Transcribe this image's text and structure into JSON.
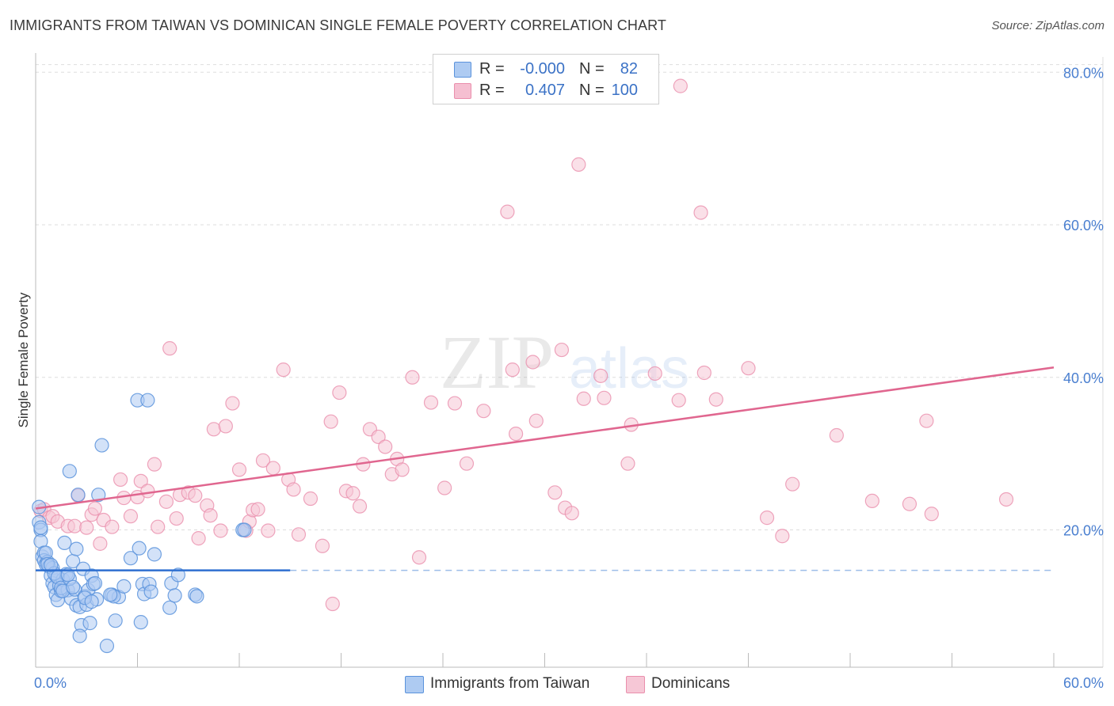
{
  "title": "IMMIGRANTS FROM TAIWAN VS DOMINICAN SINGLE FEMALE POVERTY CORRELATION CHART",
  "source": "Source: ZipAtlas.com",
  "watermark": {
    "zip": "ZIP",
    "atlas": "atlas"
  },
  "legend": {
    "r_label": "R =",
    "n_label": "N =",
    "rows": [
      {
        "r": "-0.000",
        "n": "82",
        "swatch": "#aecbf2"
      },
      {
        "r": "0.407",
        "n": "100",
        "swatch": "#f5bfd1"
      }
    ]
  },
  "bottom_legend": [
    "Immigrants from Taiwan",
    "Dominicans"
  ],
  "colors": {
    "blue_fill": "#aecbf2",
    "blue_stroke": "#5b93dc",
    "blue_line": "#2e6fd0",
    "pink_fill": "#f6c7d6",
    "pink_stroke": "#ea8fad",
    "pink_line": "#e0668f",
    "axis_label": "#4a7fd0",
    "grid": "#dddddd"
  },
  "chart_data": {
    "type": "scatter",
    "title": "IMMIGRANTS FROM TAIWAN VS DOMINICAN SINGLE FEMALE POVERTY CORRELATION CHART",
    "xlabel": "",
    "ylabel": "Single Female Poverty",
    "xlim": [
      0,
      60
    ],
    "ylim": [
      2,
      82
    ],
    "x_tick_labels": [
      "0.0%",
      "60.0%"
    ],
    "y_ticks": [
      20,
      40,
      60,
      80
    ],
    "y_tick_labels": [
      "20.0%",
      "40.0%",
      "60.0%",
      "80.0%"
    ],
    "series": [
      {
        "name": "Immigrants from Taiwan",
        "r": -0.0,
        "n": 82,
        "trend": {
          "x0": 0,
          "x1": 15,
          "y0": 14.7,
          "y1": 14.7,
          "dashed_to": 60
        },
        "points": [
          [
            0.2,
            23
          ],
          [
            0.2,
            21
          ],
          [
            0.3,
            20
          ],
          [
            0.3,
            18.5
          ],
          [
            0.4,
            16.5
          ],
          [
            0.5,
            17
          ],
          [
            0.5,
            16
          ],
          [
            0.6,
            15.5
          ],
          [
            0.7,
            15.8
          ],
          [
            0.8,
            15.2
          ],
          [
            0.9,
            14
          ],
          [
            1.0,
            15
          ],
          [
            1.0,
            13
          ],
          [
            1.1,
            12.5
          ],
          [
            1.2,
            11.5
          ],
          [
            1.2,
            14
          ],
          [
            1.3,
            10.8
          ],
          [
            1.4,
            12.7
          ],
          [
            1.5,
            12
          ],
          [
            1.6,
            13.5
          ],
          [
            1.7,
            18.3
          ],
          [
            1.8,
            14.2
          ],
          [
            1.9,
            12.1
          ],
          [
            2.0,
            27.7
          ],
          [
            2.1,
            11
          ],
          [
            2.2,
            15.9
          ],
          [
            2.3,
            12.2
          ],
          [
            2.4,
            10.1
          ],
          [
            2.4,
            17.5
          ],
          [
            2.5,
            24.6
          ],
          [
            2.6,
            9.9
          ],
          [
            2.7,
            7.5
          ],
          [
            2.8,
            14.9
          ],
          [
            2.9,
            11.3
          ],
          [
            3.0,
            10.2
          ],
          [
            3.1,
            12.1
          ],
          [
            3.2,
            7.8
          ],
          [
            3.3,
            14
          ],
          [
            3.4,
            12.9
          ],
          [
            3.5,
            13
          ],
          [
            3.6,
            10.9
          ],
          [
            3.7,
            24.6
          ],
          [
            3.9,
            31.1
          ],
          [
            4.2,
            4.8
          ],
          [
            4.5,
            11.5
          ],
          [
            4.7,
            8.1
          ],
          [
            4.9,
            11.2
          ],
          [
            5.2,
            12.6
          ],
          [
            5.6,
            16.3
          ],
          [
            6.0,
            37
          ],
          [
            6.1,
            17.6
          ],
          [
            6.2,
            7.9
          ],
          [
            6.3,
            12.9
          ],
          [
            6.4,
            11.6
          ],
          [
            6.6,
            37
          ],
          [
            6.7,
            12.9
          ],
          [
            6.8,
            11.9
          ],
          [
            7.0,
            16.8
          ],
          [
            7.9,
            9.8
          ],
          [
            8.0,
            13
          ],
          [
            8.2,
            11.4
          ],
          [
            8.4,
            14.1
          ],
          [
            9.4,
            11.5
          ],
          [
            9.5,
            11.3
          ],
          [
            12.2,
            20
          ],
          [
            12.3,
            20
          ],
          [
            0.3,
            20.3
          ],
          [
            0.6,
            17
          ],
          [
            0.7,
            15.5
          ],
          [
            1.1,
            14.3
          ],
          [
            1.3,
            13.8
          ],
          [
            1.5,
            12.4
          ],
          [
            2.0,
            13.6
          ],
          [
            2.6,
            6.1
          ],
          [
            2.9,
            11.1
          ],
          [
            3.3,
            10.6
          ],
          [
            4.6,
            11.3
          ],
          [
            4.4,
            11.5
          ],
          [
            1.9,
            14.1
          ],
          [
            0.9,
            15.4
          ],
          [
            1.6,
            12.0
          ],
          [
            2.2,
            12.5
          ]
        ]
      },
      {
        "name": "Dominicans",
        "r": 0.407,
        "n": 100,
        "trend": {
          "x0": 0,
          "x1": 60,
          "y0": 22.8,
          "y1": 41.3
        },
        "points": [
          [
            0.3,
            22.5
          ],
          [
            0.5,
            22.7
          ],
          [
            0.8,
            21.6
          ],
          [
            1.0,
            21.8
          ],
          [
            1.3,
            21.1
          ],
          [
            1.9,
            20.5
          ],
          [
            2.3,
            20.5
          ],
          [
            2.5,
            24.5
          ],
          [
            3.0,
            20.3
          ],
          [
            3.3,
            22.0
          ],
          [
            3.5,
            22.8
          ],
          [
            3.8,
            18.2
          ],
          [
            4.0,
            21.3
          ],
          [
            4.5,
            20.4
          ],
          [
            5.0,
            26.6
          ],
          [
            5.2,
            24.2
          ],
          [
            5.6,
            21.8
          ],
          [
            6.0,
            24.3
          ],
          [
            6.2,
            26.4
          ],
          [
            6.6,
            25.1
          ],
          [
            7.0,
            28.6
          ],
          [
            7.2,
            20.4
          ],
          [
            7.7,
            23.7
          ],
          [
            7.9,
            43.8
          ],
          [
            8.3,
            21.5
          ],
          [
            8.5,
            24.6
          ],
          [
            9.0,
            24.9
          ],
          [
            9.4,
            24.5
          ],
          [
            9.6,
            18.9
          ],
          [
            10.1,
            23.2
          ],
          [
            10.3,
            21.9
          ],
          [
            10.5,
            33.2
          ],
          [
            10.9,
            19.9
          ],
          [
            11.2,
            33.6
          ],
          [
            11.6,
            36.6
          ],
          [
            12.0,
            27.9
          ],
          [
            12.4,
            19.9
          ],
          [
            12.6,
            21.1
          ],
          [
            12.8,
            22.6
          ],
          [
            13.1,
            22.7
          ],
          [
            13.4,
            29.1
          ],
          [
            13.7,
            19.9
          ],
          [
            14.0,
            28.1
          ],
          [
            14.6,
            41.0
          ],
          [
            14.9,
            26.6
          ],
          [
            15.2,
            25.3
          ],
          [
            15.5,
            19.4
          ],
          [
            16.2,
            24.1
          ],
          [
            16.9,
            17.9
          ],
          [
            17.4,
            34.2
          ],
          [
            17.5,
            10.3
          ],
          [
            17.9,
            38.0
          ],
          [
            18.3,
            25.1
          ],
          [
            18.7,
            24.8
          ],
          [
            19.1,
            23.1
          ],
          [
            19.3,
            28.6
          ],
          [
            19.7,
            33.2
          ],
          [
            20.2,
            32.2
          ],
          [
            20.6,
            30.9
          ],
          [
            21.0,
            27.3
          ],
          [
            21.3,
            29.3
          ],
          [
            21.6,
            27.9
          ],
          [
            22.2,
            40.0
          ],
          [
            22.6,
            16.4
          ],
          [
            23.3,
            36.7
          ],
          [
            24.1,
            25.5
          ],
          [
            24.7,
            36.6
          ],
          [
            25.4,
            28.7
          ],
          [
            26.4,
            35.6
          ],
          [
            27.8,
            61.7
          ],
          [
            28.1,
            41.0
          ],
          [
            28.3,
            32.6
          ],
          [
            29.3,
            42.0
          ],
          [
            29.5,
            34.3
          ],
          [
            30.6,
            24.9
          ],
          [
            31.0,
            43.6
          ],
          [
            31.2,
            22.9
          ],
          [
            31.6,
            22.2
          ],
          [
            32.0,
            67.9
          ],
          [
            32.3,
            37.2
          ],
          [
            33.3,
            40.2
          ],
          [
            33.5,
            37.3
          ],
          [
            34.9,
            28.7
          ],
          [
            35.1,
            33.8
          ],
          [
            36.5,
            40.5
          ],
          [
            37.9,
            37.0
          ],
          [
            38.0,
            78.2
          ],
          [
            39.2,
            61.6
          ],
          [
            39.4,
            40.6
          ],
          [
            40.1,
            37.1
          ],
          [
            42.0,
            41.2
          ],
          [
            43.1,
            21.6
          ],
          [
            44.0,
            19.2
          ],
          [
            44.6,
            26.0
          ],
          [
            47.2,
            32.4
          ],
          [
            49.3,
            23.8
          ],
          [
            51.5,
            23.4
          ],
          [
            52.5,
            34.3
          ],
          [
            52.8,
            22.1
          ],
          [
            57.2,
            24.0
          ]
        ]
      }
    ]
  }
}
